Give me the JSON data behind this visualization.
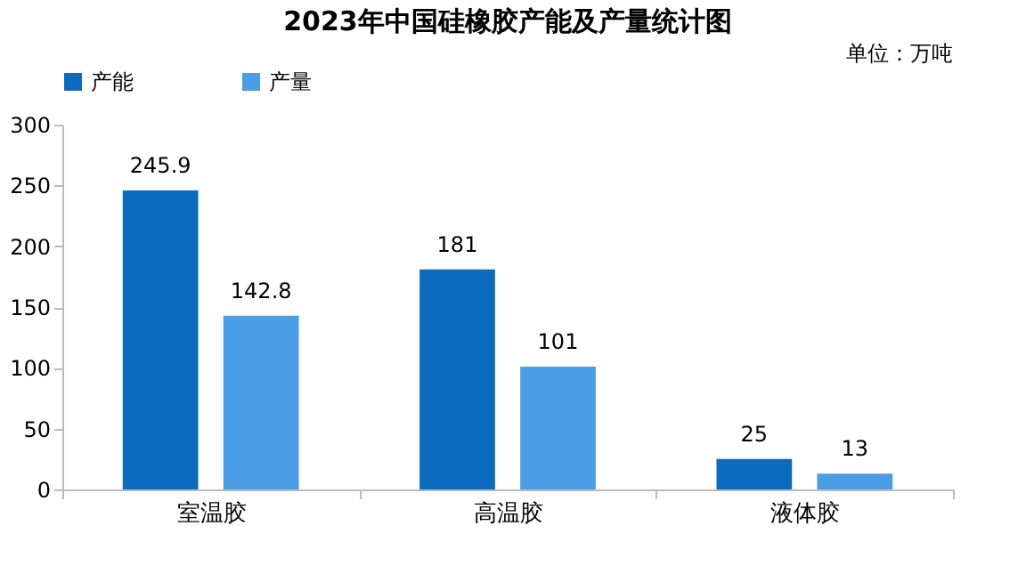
{
  "chart_data": {
    "type": "bar",
    "title": "2023年中国硅橡胶产能及产量统计图",
    "annotations": [
      "单位：万吨"
    ],
    "categories": [
      "室温胶",
      "高温胶",
      "液体胶"
    ],
    "series": [
      {
        "name": "产能",
        "color": "#0b6cbf",
        "values": [
          245.9,
          181,
          25
        ]
      },
      {
        "name": "产量",
        "color": "#4a9ee6",
        "values": [
          142.8,
          101,
          13
        ]
      }
    ],
    "ylim": [
      0,
      300
    ],
    "yticks": [
      0,
      50,
      100,
      150,
      200,
      250,
      300
    ],
    "grid": false,
    "legend": "top",
    "data_labels": true
  }
}
